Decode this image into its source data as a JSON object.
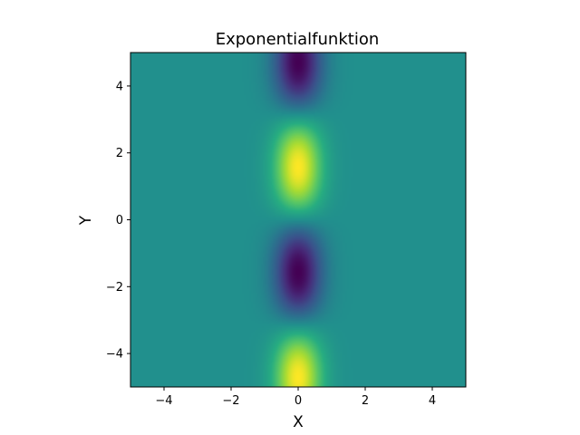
{
  "chart_data": {
    "type": "heatmap",
    "title": "Exponentialfunktion",
    "xlabel": "X",
    "ylabel": "Y",
    "xlim": [
      -5,
      5
    ],
    "ylim": [
      -5,
      5
    ],
    "x_ticks": [
      -4,
      -2,
      0,
      2,
      4
    ],
    "y_ticks": [
      -4,
      -2,
      0,
      2,
      4
    ],
    "x_tick_labels": [
      "−4",
      "−2",
      "0",
      "2",
      "4"
    ],
    "y_tick_labels": [
      "−4",
      "−2",
      "0",
      "2",
      "4"
    ],
    "colormap": "viridis",
    "grid": false,
    "legend": "none",
    "surface": {
      "description": "Gaussian band centered at x=0, oscillating along y",
      "x_center": 0,
      "x_width": 0.7,
      "y_period": 6.283,
      "y_phase": 0,
      "value_range": [
        -1,
        1
      ],
      "extrema": [
        {
          "x": 0,
          "y": 4.6,
          "value": -1
        },
        {
          "x": 0,
          "y": 1.6,
          "value": 1
        },
        {
          "x": 0,
          "y": -1.6,
          "value": -1
        },
        {
          "x": 0,
          "y": -4.7,
          "value": 1
        }
      ]
    }
  }
}
